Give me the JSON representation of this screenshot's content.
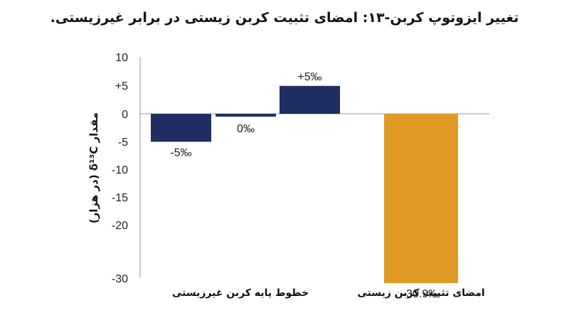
{
  "chart_data": {
    "type": "bar",
    "title": "تغییر ایزوتوپ کربن-۱۳: امضای تثبیت کربن زیستی در برابر غیرزیستی.",
    "ylabel": "مقدار δ¹³C (در هزار)",
    "y_ticks": [
      "10",
      "+5",
      "0",
      "-5",
      "-10",
      "-15",
      "-20",
      "-30"
    ],
    "ylim": [
      -30,
      10
    ],
    "y_scale": "piecewise: -30 at the -25 grid position",
    "grid": false,
    "categories": [
      "خطوط پایه کربن غیرزیستی",
      "امضای تثبیت کربن زیستی"
    ],
    "bars": [
      {
        "group": 0,
        "value": -5,
        "label": "-5‰",
        "color": "#1f2f63"
      },
      {
        "group": 0,
        "value": -0.5,
        "label": "0‰",
        "color": "#1f2f63"
      },
      {
        "group": 0,
        "value": 5,
        "label": "+5‰",
        "color": "#1f2f63"
      },
      {
        "group": 1,
        "value": -30.9,
        "label": "-30.9‰",
        "color": "#e09a24"
      }
    ]
  }
}
